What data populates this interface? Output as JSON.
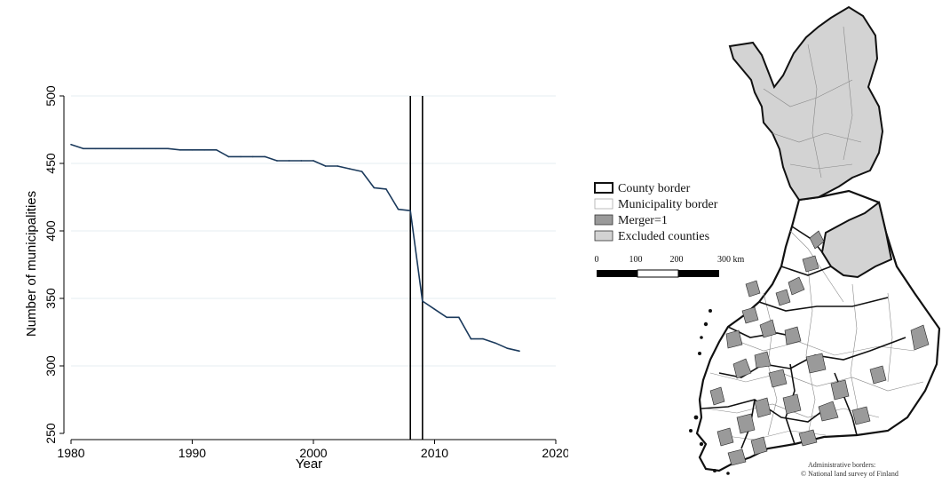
{
  "chart_data": {
    "type": "line",
    "xlabel": "Year",
    "ylabel": "Number of municipalities",
    "xlim": [
      1980,
      2020
    ],
    "ylim": [
      250,
      500
    ],
    "xticks": [
      1980,
      1990,
      2000,
      2010,
      2020
    ],
    "yticks": [
      250,
      300,
      350,
      400,
      450,
      500
    ],
    "grid": true,
    "x": [
      1980,
      1981,
      1982,
      1983,
      1984,
      1985,
      1986,
      1987,
      1988,
      1989,
      1990,
      1991,
      1992,
      1993,
      1994,
      1995,
      1996,
      1997,
      1998,
      1999,
      2000,
      2001,
      2002,
      2003,
      2004,
      2005,
      2006,
      2007,
      2008,
      2009,
      2010,
      2011,
      2012,
      2013,
      2014,
      2015,
      2016,
      2017
    ],
    "values": [
      464,
      461,
      461,
      461,
      461,
      461,
      461,
      461,
      461,
      460,
      460,
      460,
      460,
      455,
      455,
      455,
      455,
      452,
      452,
      452,
      452,
      448,
      448,
      446,
      444,
      432,
      431,
      416,
      415,
      348,
      342,
      336,
      336,
      320,
      320,
      317,
      313,
      311
    ],
    "vlines": [
      2008,
      2009
    ],
    "line_color": "#1b3a5c"
  },
  "map": {
    "legend": [
      {
        "label": "County border",
        "swatch": "county"
      },
      {
        "label": "Municipality border",
        "swatch": "municipality"
      },
      {
        "label": "Merger=1",
        "swatch": "merger"
      },
      {
        "label": "Excluded counties",
        "swatch": "excluded"
      }
    ],
    "scale_labels": [
      "0",
      "100",
      "200",
      "300 km"
    ],
    "credit_line1": "Administrative borders:",
    "credit_line2": "© National land survey of Finland",
    "colors": {
      "excluded": "#d3d3d3",
      "merger": "#9a9a9a",
      "border": "#111111"
    }
  }
}
